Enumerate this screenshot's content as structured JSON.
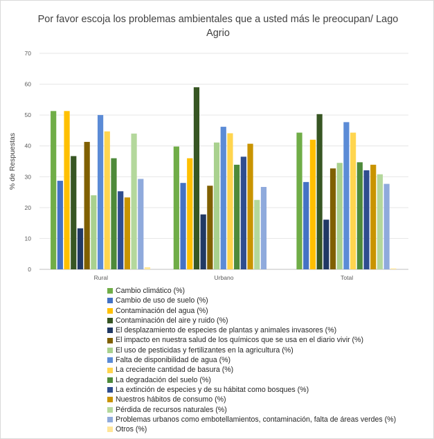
{
  "chart_data": {
    "type": "bar",
    "title": "Por favor escoja los problemas ambientales que a usted más le preocupan/ Lago Agrio",
    "title_lines": [
      "Por favor escoja los problemas ambientales que a usted más le preocupan/ Lago",
      "Agrio"
    ],
    "ylabel": "% de Respuestas",
    "xlabel": "",
    "ylim": [
      0,
      70
    ],
    "yticks": [
      "0",
      "10",
      "20",
      "30",
      "40",
      "50",
      "60",
      "70"
    ],
    "grid": true,
    "legend_position": "bottom",
    "categories": [
      "Rural",
      "Urbano",
      "Total"
    ],
    "series": [
      {
        "name": "Cambio climático (%)",
        "color": "#70ad47",
        "values": [
          51.3,
          39.8,
          44.3
        ]
      },
      {
        "name": "Cambio de uso de suelo (%)",
        "color": "#4472c4",
        "values": [
          28.7,
          28.0,
          28.3
        ]
      },
      {
        "name": "Contaminación del agua (%)",
        "color": "#ffc000",
        "values": [
          51.3,
          36.0,
          42.0
        ]
      },
      {
        "name": "Contaminación del aire y ruido (%)",
        "color": "#375623",
        "values": [
          36.7,
          59.0,
          50.3
        ]
      },
      {
        "name": "El desplazamiento de especies de plantas y animales invasores (%)",
        "color": "#203864",
        "values": [
          13.3,
          17.8,
          16.1
        ]
      },
      {
        "name": "El impacto en nuestra salud de los químicos que se usa en el diario vivir (%)",
        "color": "#806000",
        "values": [
          41.3,
          27.1,
          32.7
        ]
      },
      {
        "name": "El uso de pesticidas y fertilizantes en la agricultura (%)",
        "color": "#a9d18e",
        "values": [
          24.0,
          41.1,
          34.5
        ]
      },
      {
        "name": "Falta de disponibilidad de agua (%)",
        "color": "#5b8bd6",
        "values": [
          50.0,
          46.2,
          47.7
        ]
      },
      {
        "name": "La creciente cantidad de basura (%)",
        "color": "#ffd54f",
        "values": [
          44.7,
          44.1,
          44.3
        ]
      },
      {
        "name": "La degradación del suelo (%)",
        "color": "#4e8a3a",
        "values": [
          36.0,
          33.9,
          34.7
        ]
      },
      {
        "name": "La extinción de especies y de su hábitat como bosques (%)",
        "color": "#2f4d8f",
        "values": [
          25.3,
          36.5,
          32.1
        ]
      },
      {
        "name": "Nuestros hábitos de consumo (%)",
        "color": "#c99400",
        "values": [
          23.3,
          40.7,
          33.9
        ]
      },
      {
        "name": "Pérdida de recursos naturales (%)",
        "color": "#b4d89c",
        "values": [
          44.0,
          22.5,
          30.8
        ]
      },
      {
        "name": "Problemas urbanos como embotellamientos, contaminación, falta de áreas verdes (%)",
        "color": "#8faadc",
        "values": [
          29.3,
          26.7,
          27.7
        ]
      },
      {
        "name": "Otros (%)",
        "color": "#ffe699",
        "values": [
          0.7,
          0.0,
          0.3
        ]
      }
    ]
  }
}
